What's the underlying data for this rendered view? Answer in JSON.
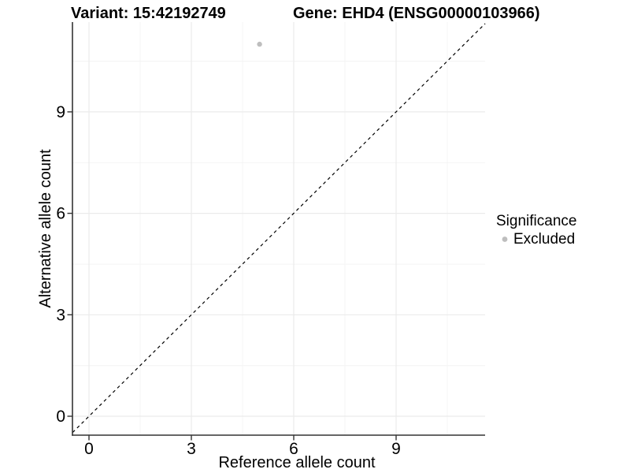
{
  "chart_data": {
    "type": "scatter",
    "titles": {
      "left": "Variant: 15:42192749",
      "right": "Gene: EHD4 (ENSG00000103966)"
    },
    "xlabel": "Reference allele count",
    "ylabel": "Alternative allele count",
    "x_tick_labels": [
      "0",
      "3",
      "6",
      "9"
    ],
    "y_tick_labels": [
      "0",
      "3",
      "6",
      "9"
    ],
    "x_tick_values": [
      0,
      3,
      6,
      9
    ],
    "y_tick_values": [
      0,
      3,
      6,
      9
    ],
    "xlim": [
      -0.48,
      11.61
    ],
    "ylim": [
      -0.56,
      11.66
    ],
    "grid": {
      "major": true,
      "minor": true
    },
    "series": [
      {
        "name": "Excluded",
        "color": "#bebebe",
        "points": [
          {
            "x": 5,
            "y": 11
          }
        ]
      }
    ],
    "reference_line": {
      "kind": "identity",
      "slope": 1,
      "intercept": 0,
      "style": "dashed",
      "color": "#000000"
    },
    "legend": {
      "title": "Significance",
      "position": "right",
      "items": [
        {
          "label": "Excluded",
          "color": "#bebebe",
          "marker": "circle"
        }
      ]
    },
    "colors": {
      "point": "#bebebe",
      "grid_major": "#ebebeb",
      "grid_minor": "#f4f4f4",
      "axis_line": "#333333",
      "text": "#000000",
      "background": "#ffffff"
    }
  }
}
